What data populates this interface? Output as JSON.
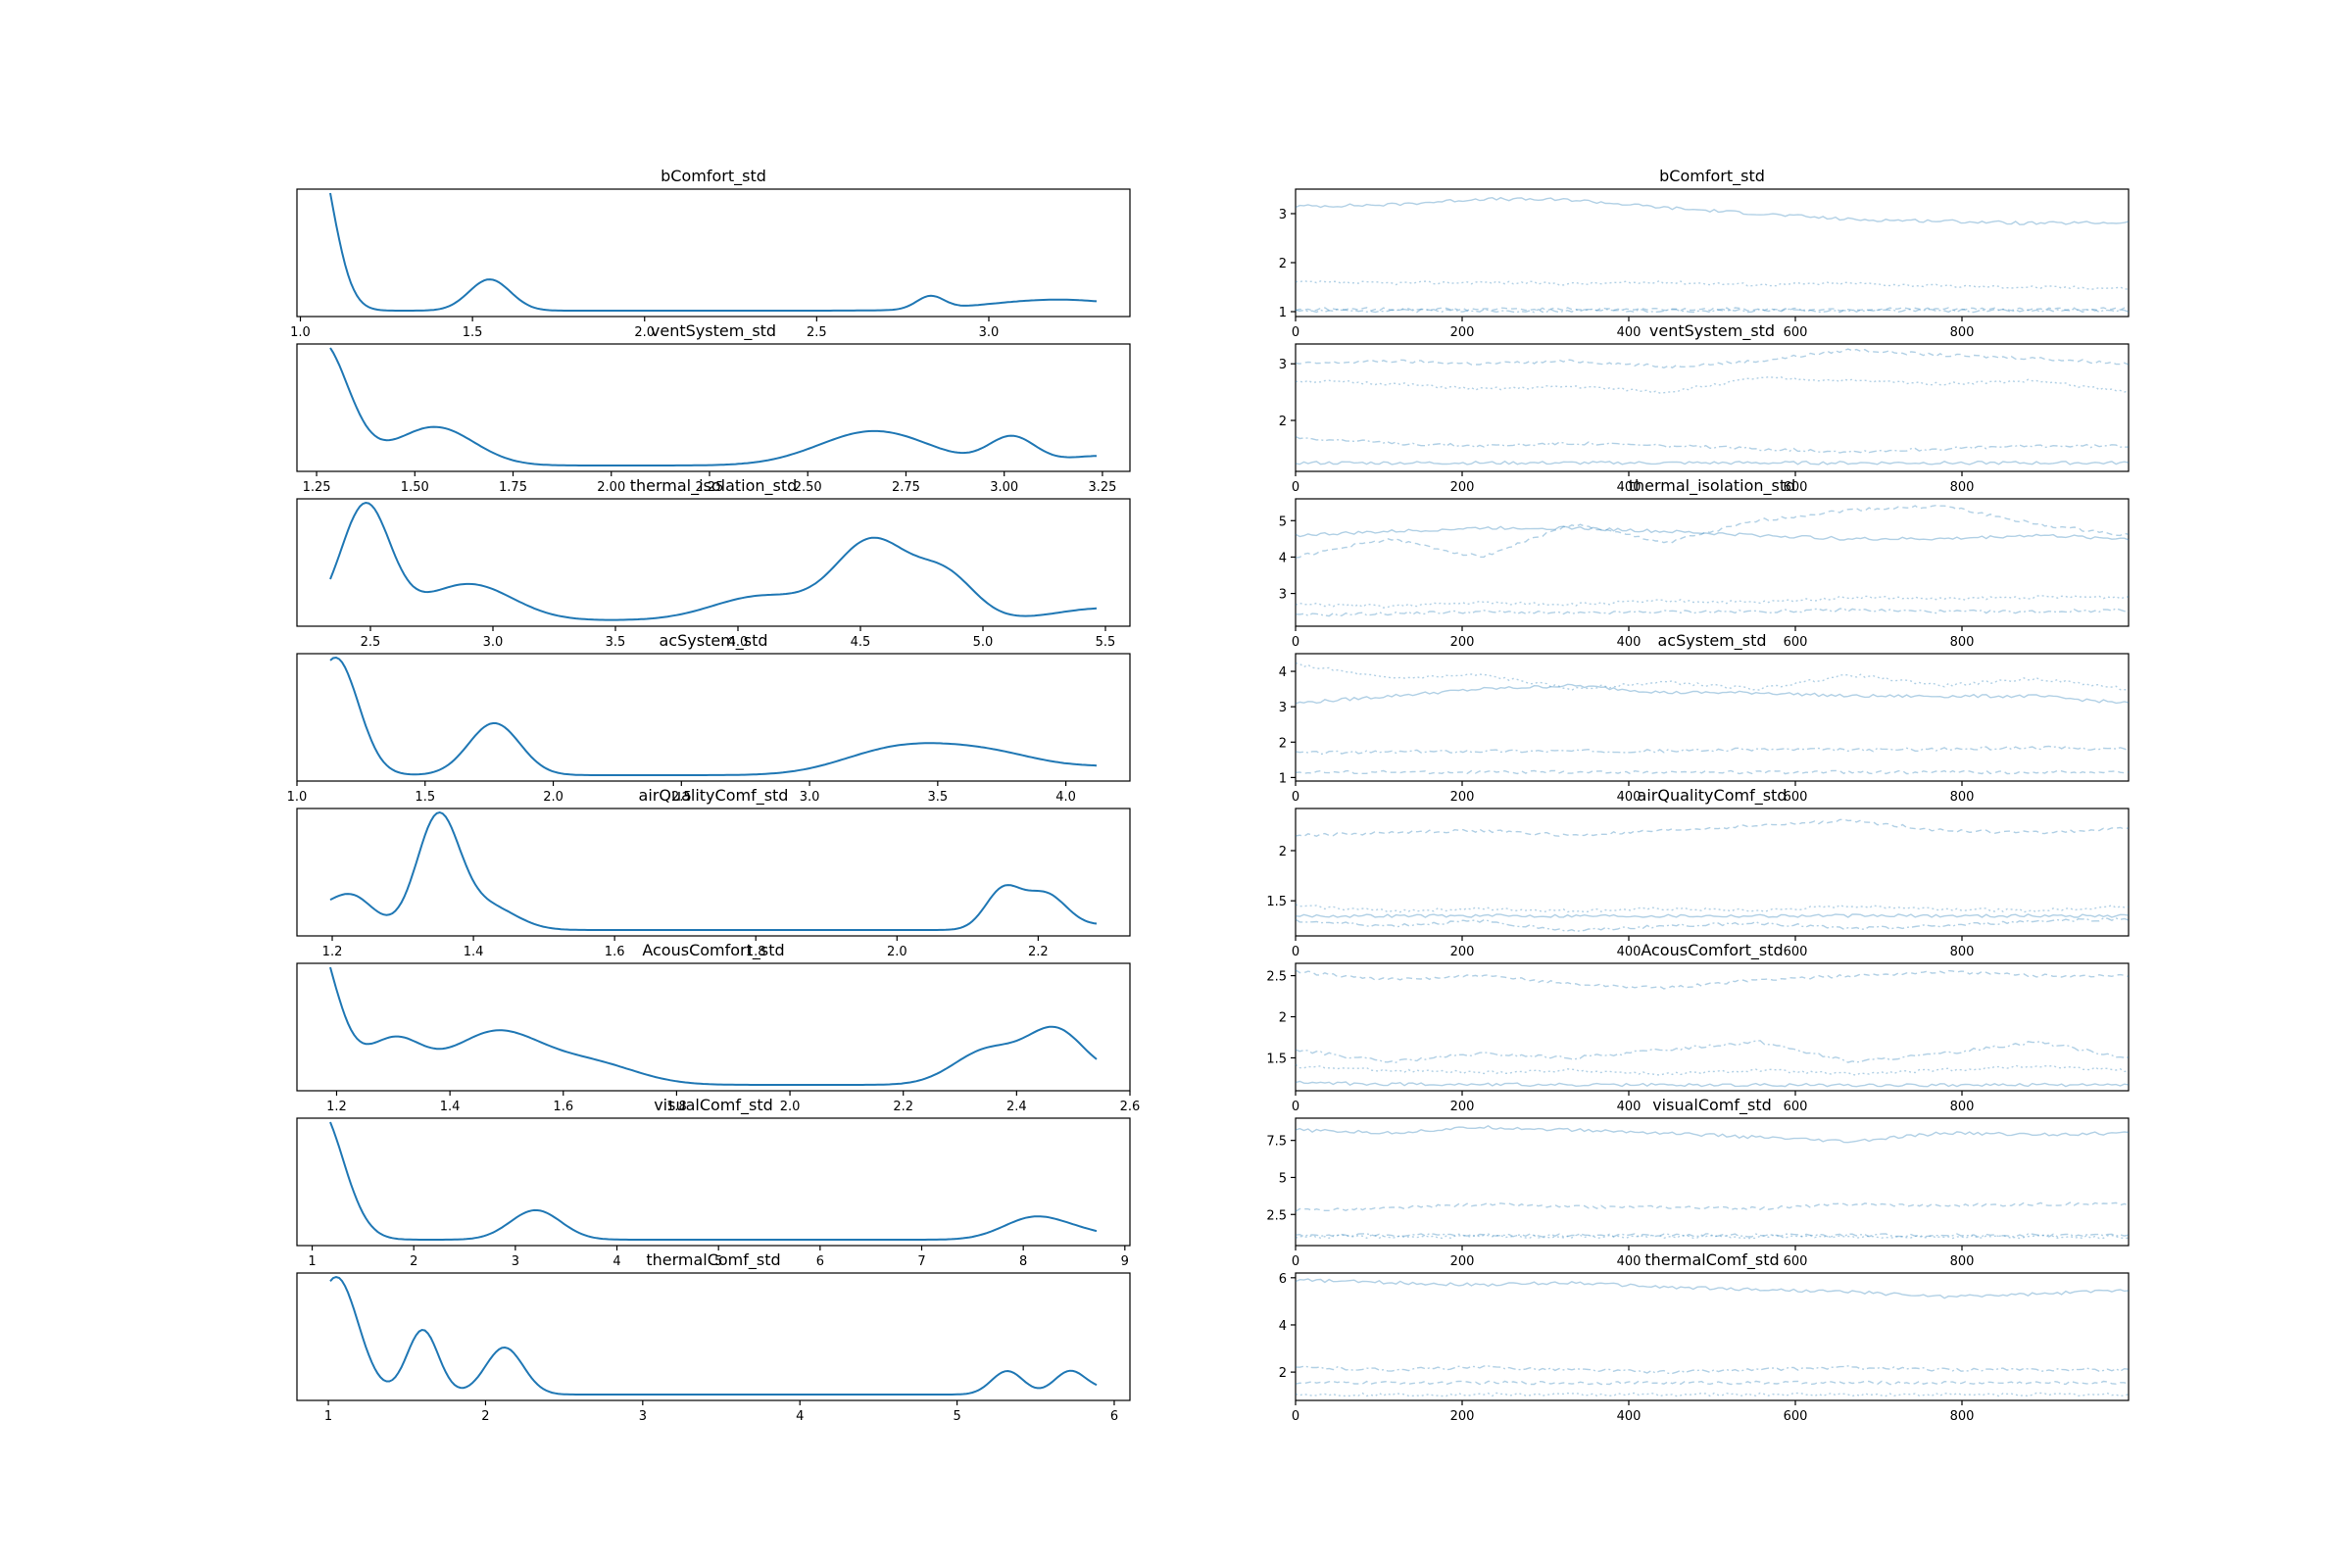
{
  "figure": {
    "background": "#ffffff",
    "line_color": "#1f77b4"
  },
  "chart_data": [
    {
      "panel": "density",
      "type": "line",
      "title": "bComfort_std",
      "xlim": [
        0.99,
        3.41
      ],
      "xticks": [
        1.0,
        1.5,
        2.0,
        2.5,
        3.0
      ],
      "xtick_labels": [
        "1.0",
        "1.5",
        "2.0",
        "2.5",
        "3.0"
      ],
      "yticks": [],
      "yaxis_labels": "hidden",
      "peaks": [
        {
          "x": 1.03,
          "height": 1.0,
          "width": 0.06
        },
        {
          "x": 1.55,
          "height": 0.17,
          "width": 0.06
        },
        {
          "x": 2.83,
          "height": 0.07,
          "width": 0.04
        },
        {
          "x": 3.2,
          "height": 0.06,
          "width": 0.2
        }
      ]
    },
    {
      "panel": "trace",
      "type": "line",
      "title": "bComfort_std",
      "xlim": [
        0,
        1000
      ],
      "ylim": [
        0.9,
        3.5
      ],
      "xticks": [
        0,
        200,
        400,
        600,
        800
      ],
      "yticks": [
        1,
        2,
        3
      ],
      "series": [
        {
          "style": "solid",
          "values": [
            3.15,
            3.18,
            3.3,
            3.28,
            3.12,
            3.0,
            2.88,
            2.85,
            2.8,
            2.82
          ]
        },
        {
          "style": "dotted",
          "values": [
            1.6,
            1.58,
            1.6,
            1.57,
            1.6,
            1.55,
            1.58,
            1.52,
            1.5,
            1.48
          ]
        },
        {
          "style": "dashed",
          "values": [
            1.05,
            1.05,
            1.05,
            1.05,
            1.05,
            1.05,
            1.05,
            1.05,
            1.05,
            1.05
          ]
        },
        {
          "style": "dashdot",
          "values": [
            1.02,
            1.02,
            1.02,
            1.02,
            1.02,
            1.02,
            1.02,
            1.02,
            1.02,
            1.02
          ]
        }
      ]
    },
    {
      "panel": "density",
      "type": "line",
      "title": "ventSystem_std",
      "xlim": [
        1.2,
        3.32
      ],
      "xticks": [
        1.25,
        1.5,
        1.75,
        2.0,
        2.25,
        2.5,
        2.75,
        3.0,
        3.25
      ],
      "xtick_labels": [
        "1.25",
        "1.50",
        "1.75",
        "2.00",
        "2.25",
        "2.50",
        "2.75",
        "3.00",
        "3.25"
      ],
      "yticks": [],
      "yaxis_labels": "hidden",
      "peaks": [
        {
          "x": 1.26,
          "height": 0.9,
          "width": 0.07
        },
        {
          "x": 1.55,
          "height": 0.28,
          "width": 0.1
        },
        {
          "x": 2.67,
          "height": 0.25,
          "width": 0.14
        },
        {
          "x": 3.02,
          "height": 0.2,
          "width": 0.06
        },
        {
          "x": 3.25,
          "height": 0.07,
          "width": 0.1
        }
      ]
    },
    {
      "panel": "trace",
      "type": "line",
      "title": "ventSystem_std",
      "xlim": [
        0,
        1000
      ],
      "ylim": [
        1.1,
        3.35
      ],
      "xticks": [
        0,
        200,
        400,
        600,
        800
      ],
      "yticks": [
        2,
        3
      ],
      "series": [
        {
          "style": "dashed",
          "values": [
            3.0,
            3.05,
            3.0,
            3.05,
            2.95,
            3.05,
            3.25,
            3.15,
            3.1,
            3.0
          ]
        },
        {
          "style": "dotted",
          "values": [
            2.7,
            2.65,
            2.55,
            2.6,
            2.5,
            2.75,
            2.7,
            2.65,
            2.7,
            2.5
          ]
        },
        {
          "style": "dashdot",
          "values": [
            1.7,
            1.6,
            1.55,
            1.6,
            1.55,
            1.5,
            1.45,
            1.5,
            1.55,
            1.55
          ]
        },
        {
          "style": "solid",
          "values": [
            1.25,
            1.25,
            1.25,
            1.25,
            1.25,
            1.25,
            1.25,
            1.25,
            1.25,
            1.25
          ]
        }
      ]
    },
    {
      "panel": "density",
      "type": "line",
      "title": "thermal_isolation_std",
      "xlim": [
        2.2,
        5.6
      ],
      "xticks": [
        2.5,
        3.0,
        3.5,
        4.0,
        4.5,
        5.0,
        5.5
      ],
      "xtick_labels": [
        "2.5",
        "3.0",
        "3.5",
        "4.0",
        "4.5",
        "5.0",
        "5.5"
      ],
      "yticks": [],
      "yaxis_labels": "hidden",
      "peaks": [
        {
          "x": 2.48,
          "height": 0.95,
          "width": 0.1
        },
        {
          "x": 2.9,
          "height": 0.3,
          "width": 0.18
        },
        {
          "x": 4.1,
          "height": 0.2,
          "width": 0.2
        },
        {
          "x": 4.55,
          "height": 0.65,
          "width": 0.15
        },
        {
          "x": 4.85,
          "height": 0.35,
          "width": 0.12
        },
        {
          "x": 5.5,
          "height": 0.1,
          "width": 0.2
        }
      ]
    },
    {
      "panel": "trace",
      "type": "line",
      "title": "thermal_isolation_std",
      "xlim": [
        0,
        1000
      ],
      "ylim": [
        2.1,
        5.6
      ],
      "xticks": [
        0,
        200,
        400,
        600,
        800
      ],
      "yticks": [
        3,
        4,
        5
      ],
      "series": [
        {
          "style": "dashed",
          "values": [
            4.0,
            4.5,
            4.0,
            4.9,
            4.4,
            5.0,
            5.3,
            5.4,
            4.9,
            4.6
          ]
        },
        {
          "style": "solid",
          "values": [
            4.6,
            4.7,
            4.8,
            4.8,
            4.7,
            4.6,
            4.5,
            4.5,
            4.6,
            4.5
          ]
        },
        {
          "style": "dotted",
          "values": [
            2.7,
            2.65,
            2.75,
            2.7,
            2.8,
            2.75,
            2.9,
            2.85,
            2.9,
            2.9
          ]
        },
        {
          "style": "dashdot",
          "values": [
            2.4,
            2.45,
            2.5,
            2.45,
            2.5,
            2.5,
            2.55,
            2.5,
            2.5,
            2.55
          ]
        }
      ]
    },
    {
      "panel": "density",
      "type": "line",
      "title": "acSystem_std",
      "xlim": [
        1.0,
        4.25
      ],
      "xticks": [
        1.0,
        1.5,
        2.0,
        2.5,
        3.0,
        3.5,
        4.0
      ],
      "xtick_labels": [
        "1.0",
        "1.5",
        "2.0",
        "2.5",
        "3.0",
        "3.5",
        "4.0"
      ],
      "yticks": [],
      "yaxis_labels": "hidden",
      "peaks": [
        {
          "x": 1.15,
          "height": 0.95,
          "width": 0.09
        },
        {
          "x": 1.77,
          "height": 0.42,
          "width": 0.1
        },
        {
          "x": 3.3,
          "height": 0.15,
          "width": 0.2
        },
        {
          "x": 3.65,
          "height": 0.2,
          "width": 0.25
        },
        {
          "x": 4.2,
          "height": 0.05,
          "width": 0.15
        }
      ]
    },
    {
      "panel": "trace",
      "type": "line",
      "title": "acSystem_std",
      "xlim": [
        0,
        1000
      ],
      "ylim": [
        0.9,
        4.5
      ],
      "xticks": [
        0,
        200,
        400,
        600,
        800
      ],
      "yticks": [
        1,
        2,
        3,
        4
      ],
      "series": [
        {
          "style": "dotted",
          "values": [
            4.2,
            3.8,
            3.9,
            3.5,
            3.7,
            3.5,
            3.9,
            3.6,
            3.8,
            3.5
          ]
        },
        {
          "style": "solid",
          "values": [
            3.1,
            3.3,
            3.5,
            3.6,
            3.4,
            3.4,
            3.3,
            3.3,
            3.3,
            3.1
          ]
        },
        {
          "style": "dashdot",
          "values": [
            1.7,
            1.72,
            1.75,
            1.75,
            1.75,
            1.8,
            1.78,
            1.8,
            1.85,
            1.8
          ]
        },
        {
          "style": "dashed",
          "values": [
            1.15,
            1.15,
            1.15,
            1.15,
            1.15,
            1.15,
            1.15,
            1.15,
            1.15,
            1.15
          ]
        }
      ]
    },
    {
      "panel": "density",
      "type": "line",
      "title": "airQualityComf_std",
      "xlim": [
        1.15,
        2.33
      ],
      "xticks": [
        1.2,
        1.4,
        1.6,
        1.8,
        2.0,
        2.2
      ],
      "xtick_labels": [
        "1.2",
        "1.4",
        "1.6",
        "1.8",
        "2.0",
        "2.2"
      ],
      "yticks": [],
      "yaxis_labels": "hidden",
      "peaks": [
        {
          "x": 1.17,
          "height": 0.15,
          "width": 0.04
        },
        {
          "x": 1.23,
          "height": 0.25,
          "width": 0.03
        },
        {
          "x": 1.35,
          "height": 0.95,
          "width": 0.03
        },
        {
          "x": 1.42,
          "height": 0.2,
          "width": 0.04
        },
        {
          "x": 2.15,
          "height": 0.33,
          "width": 0.025
        },
        {
          "x": 2.21,
          "height": 0.3,
          "width": 0.03
        },
        {
          "x": 2.32,
          "height": 0.05,
          "width": 0.05
        }
      ]
    },
    {
      "panel": "trace",
      "type": "line",
      "title": "airQualityComf_std",
      "xlim": [
        0,
        1000
      ],
      "ylim": [
        1.15,
        2.42
      ],
      "xticks": [
        0,
        200,
        400,
        600,
        800
      ],
      "yticks": [
        1.5,
        2.0
      ],
      "series": [
        {
          "style": "dashed",
          "values": [
            2.15,
            2.18,
            2.2,
            2.15,
            2.2,
            2.25,
            2.3,
            2.2,
            2.18,
            2.22
          ]
        },
        {
          "style": "dotted",
          "values": [
            1.45,
            1.4,
            1.42,
            1.4,
            1.42,
            1.4,
            1.45,
            1.42,
            1.4,
            1.45
          ]
        },
        {
          "style": "solid",
          "values": [
            1.35,
            1.35,
            1.35,
            1.35,
            1.35,
            1.35,
            1.35,
            1.35,
            1.35,
            1.35
          ]
        },
        {
          "style": "dashdot",
          "values": [
            1.3,
            1.25,
            1.3,
            1.2,
            1.25,
            1.28,
            1.22,
            1.25,
            1.3,
            1.32
          ]
        }
      ]
    },
    {
      "panel": "density",
      "type": "line",
      "title": "AcousComfort_std",
      "xlim": [
        1.13,
        2.6
      ],
      "xticks": [
        1.2,
        1.4,
        1.6,
        1.8,
        2.0,
        2.2,
        2.4,
        2.6
      ],
      "xtick_labels": [
        "1.2",
        "1.4",
        "1.6",
        "1.8",
        "2.0",
        "2.2",
        "2.4",
        "2.6"
      ],
      "yticks": [],
      "yaxis_labels": "hidden",
      "peaks": [
        {
          "x": 1.15,
          "height": 0.95,
          "width": 0.045
        },
        {
          "x": 1.3,
          "height": 0.25,
          "width": 0.05
        },
        {
          "x": 1.48,
          "height": 0.3,
          "width": 0.08
        },
        {
          "x": 1.65,
          "height": 0.12,
          "width": 0.08
        },
        {
          "x": 2.35,
          "height": 0.2,
          "width": 0.06
        },
        {
          "x": 2.47,
          "height": 0.3,
          "width": 0.05
        },
        {
          "x": 2.58,
          "height": 0.05,
          "width": 0.05
        }
      ]
    },
    {
      "panel": "trace",
      "type": "line",
      "title": "AcousComfort_std",
      "xlim": [
        0,
        1000
      ],
      "ylim": [
        1.1,
        2.65
      ],
      "xticks": [
        0,
        200,
        400,
        600,
        800
      ],
      "yticks": [
        1.5,
        2.0,
        2.5
      ],
      "series": [
        {
          "style": "dashed",
          "values": [
            2.55,
            2.45,
            2.5,
            2.4,
            2.35,
            2.45,
            2.5,
            2.55,
            2.5,
            2.5
          ]
        },
        {
          "style": "dashdot",
          "values": [
            1.6,
            1.45,
            1.55,
            1.5,
            1.6,
            1.7,
            1.45,
            1.55,
            1.7,
            1.5
          ]
        },
        {
          "style": "dotted",
          "values": [
            1.4,
            1.35,
            1.32,
            1.35,
            1.3,
            1.35,
            1.3,
            1.35,
            1.4,
            1.35
          ]
        },
        {
          "style": "solid",
          "values": [
            1.2,
            1.18,
            1.18,
            1.17,
            1.17,
            1.17,
            1.17,
            1.17,
            1.17,
            1.17
          ]
        }
      ]
    },
    {
      "panel": "density",
      "type": "line",
      "title": "visualComf_std",
      "xlim": [
        0.85,
        9.05
      ],
      "xticks": [
        1,
        2,
        3,
        4,
        5,
        6,
        7,
        8,
        9
      ],
      "xtick_labels": [
        "1",
        "2",
        "3",
        "4",
        "5",
        "6",
        "7",
        "8",
        "9"
      ],
      "yticks": [],
      "yaxis_labels": "hidden",
      "peaks": [
        {
          "x": 1.05,
          "height": 1.0,
          "width": 0.25
        },
        {
          "x": 3.2,
          "height": 0.22,
          "width": 0.25
        },
        {
          "x": 8.1,
          "height": 0.16,
          "width": 0.3
        },
        {
          "x": 8.6,
          "height": 0.05,
          "width": 0.3
        }
      ]
    },
    {
      "panel": "trace",
      "type": "line",
      "title": "visualComf_std",
      "xlim": [
        0,
        1000
      ],
      "ylim": [
        0.4,
        9.0
      ],
      "xticks": [
        0,
        200,
        400,
        600,
        800
      ],
      "yticks": [
        2.5,
        5.0,
        7.5
      ],
      "series": [
        {
          "style": "solid",
          "values": [
            8.2,
            8.0,
            8.4,
            8.2,
            8.0,
            7.7,
            7.4,
            8.0,
            7.9,
            8.0
          ]
        },
        {
          "style": "dashed",
          "values": [
            2.8,
            2.9,
            3.2,
            3.0,
            3.0,
            2.9,
            3.2,
            3.1,
            3.2,
            3.2
          ]
        },
        {
          "style": "dashdot",
          "values": [
            1.1,
            1.1,
            1.1,
            1.1,
            1.1,
            1.1,
            1.1,
            1.1,
            1.1,
            1.1
          ]
        },
        {
          "style": "dotted",
          "values": [
            1.0,
            1.0,
            1.0,
            1.0,
            1.0,
            1.0,
            1.0,
            1.0,
            1.0,
            1.0
          ]
        }
      ]
    },
    {
      "panel": "density",
      "type": "line",
      "title": "thermalComf_std",
      "xlim": [
        0.8,
        6.1
      ],
      "xticks": [
        1,
        2,
        3,
        4,
        5,
        6
      ],
      "xtick_labels": [
        "1",
        "2",
        "3",
        "4",
        "5",
        "6"
      ],
      "yticks": [],
      "yaxis_labels": "hidden",
      "peaks": [
        {
          "x": 1.05,
          "height": 1.0,
          "width": 0.14
        },
        {
          "x": 1.6,
          "height": 0.55,
          "width": 0.1
        },
        {
          "x": 2.12,
          "height": 0.4,
          "width": 0.12
        },
        {
          "x": 5.32,
          "height": 0.2,
          "width": 0.1
        },
        {
          "x": 5.72,
          "height": 0.2,
          "width": 0.1
        },
        {
          "x": 5.95,
          "height": 0.04,
          "width": 0.1
        }
      ]
    },
    {
      "panel": "trace",
      "type": "line",
      "title": "thermalComf_std",
      "xlim": [
        0,
        1000
      ],
      "ylim": [
        0.8,
        6.2
      ],
      "xticks": [
        0,
        200,
        400,
        600,
        800
      ],
      "yticks": [
        2,
        4,
        6
      ],
      "series": [
        {
          "style": "solid",
          "values": [
            5.9,
            5.8,
            5.7,
            5.8,
            5.6,
            5.5,
            5.4,
            5.2,
            5.3,
            5.5
          ]
        },
        {
          "style": "dashdot",
          "values": [
            2.2,
            2.1,
            2.2,
            2.1,
            2.0,
            2.1,
            2.2,
            2.1,
            2.1,
            2.1
          ]
        },
        {
          "style": "dashed",
          "values": [
            1.55,
            1.55,
            1.55,
            1.55,
            1.55,
            1.55,
            1.55,
            1.55,
            1.55,
            1.55
          ]
        },
        {
          "style": "dotted",
          "values": [
            1.05,
            1.05,
            1.05,
            1.05,
            1.05,
            1.05,
            1.05,
            1.05,
            1.05,
            1.05
          ]
        }
      ]
    }
  ]
}
